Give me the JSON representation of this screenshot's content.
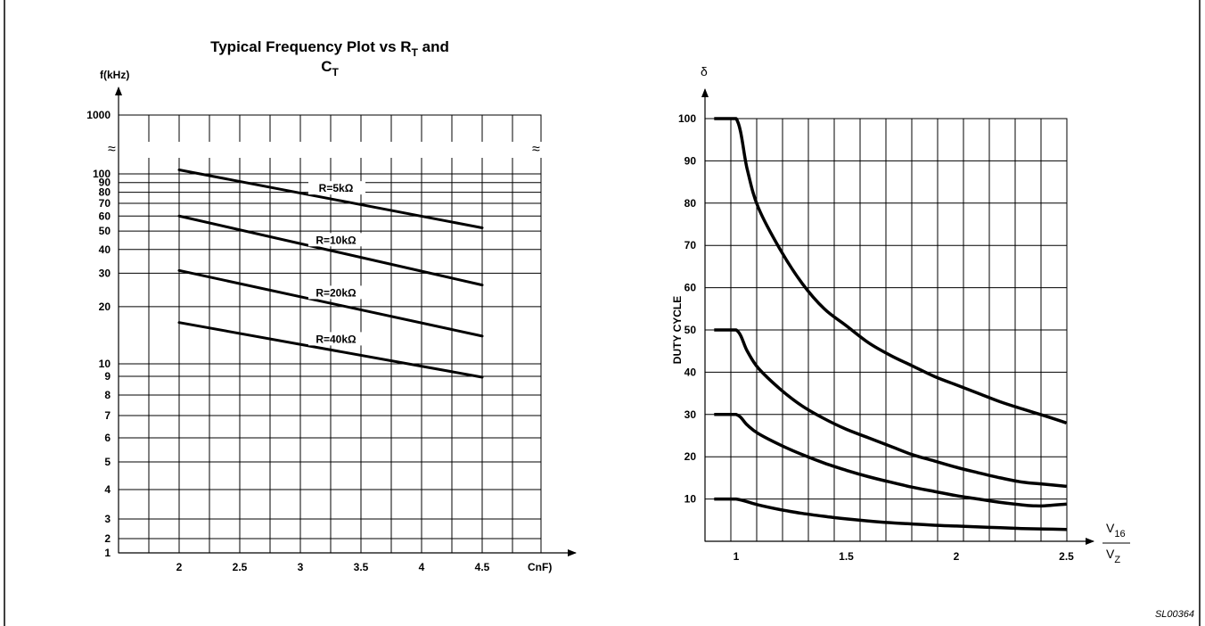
{
  "figure_id": "SL00364",
  "chart_data": [
    {
      "type": "line",
      "title_main": "Typical Frequency Plot vs R",
      "title_sub1": "T",
      "title_mid": " and",
      "title_line2": "C",
      "title_sub2": "T",
      "ylabel": "f(kHz)",
      "xlabel": "CnF)",
      "y_scale": "log (broken)",
      "x_ticks": [
        "2",
        "2.5",
        "3",
        "3.5",
        "4",
        "4.5"
      ],
      "y_ticks": [
        "1000",
        "100",
        "90",
        "80",
        "70",
        "60",
        "50",
        "40",
        "30",
        "20",
        "10",
        "9",
        "8",
        "7",
        "6",
        "5",
        "4",
        "3",
        "2",
        "1"
      ],
      "break_symbol": "≈",
      "grid": true,
      "series": [
        {
          "name": "R=5kΩ",
          "x": [
            2,
            4.5
          ],
          "y": [
            105,
            52
          ]
        },
        {
          "name": "R=10kΩ",
          "x": [
            2,
            4.5
          ],
          "y": [
            60,
            26
          ]
        },
        {
          "name": "R=20kΩ",
          "x": [
            2,
            4.5
          ],
          "y": [
            31,
            14
          ]
        },
        {
          "name": "R=40kΩ",
          "x": [
            2,
            4.5
          ],
          "y": [
            16.5,
            8.5
          ]
        }
      ]
    },
    {
      "type": "line",
      "ylabel": "DUTY CYCLE",
      "ysymbol": "δ",
      "xlabel_num": "V",
      "xlabel_num_sub": "16",
      "xlabel_den": "V",
      "xlabel_den_sub": "Z",
      "x_ticks": [
        "1",
        "1.5",
        "2",
        "2.5"
      ],
      "y_ticks": [
        "100",
        "90",
        "80",
        "70",
        "60",
        "50",
        "40",
        "30",
        "20",
        "10"
      ],
      "xlim": [
        0.9,
        2.5
      ],
      "ylim": [
        0,
        100
      ],
      "grid": true,
      "series": [
        {
          "x": [
            0.9,
            1.0,
            1.05,
            1.1,
            1.2,
            1.3,
            1.4,
            1.5,
            1.6,
            1.7,
            1.8,
            1.9,
            2.0,
            2.1,
            2.2,
            2.3,
            2.4,
            2.5
          ],
          "y": [
            100,
            100,
            88,
            79,
            69,
            61,
            55,
            51,
            47,
            44,
            41.5,
            39,
            37,
            35,
            33,
            31.3,
            29.7,
            28
          ]
        },
        {
          "x": [
            0.9,
            1.0,
            1.05,
            1.1,
            1.2,
            1.3,
            1.4,
            1.5,
            1.6,
            1.7,
            1.8,
            1.9,
            2.0,
            2.1,
            2.2,
            2.3,
            2.4,
            2.5
          ],
          "y": [
            50,
            50,
            45,
            41,
            36,
            32,
            29,
            26.5,
            24.5,
            22.5,
            20.5,
            19,
            17.5,
            16.2,
            15,
            14,
            13.5,
            13
          ]
        },
        {
          "x": [
            0.9,
            1.0,
            1.05,
            1.1,
            1.2,
            1.3,
            1.4,
            1.5,
            1.6,
            1.7,
            1.8,
            1.9,
            2.0,
            2.1,
            2.2,
            2.3,
            2.35,
            2.4,
            2.5
          ],
          "y": [
            30,
            30,
            27.5,
            25.5,
            22.8,
            20.5,
            18.5,
            16.8,
            15.3,
            14,
            12.8,
            11.8,
            10.8,
            10,
            9.2,
            8.6,
            8.4,
            8.4,
            8.8
          ]
        },
        {
          "x": [
            0.9,
            1.0,
            1.1,
            1.2,
            1.3,
            1.4,
            1.5,
            1.6,
            1.7,
            1.8,
            1.9,
            2.0,
            2.1,
            2.2,
            2.3,
            2.4,
            2.5
          ],
          "y": [
            10,
            10,
            8.6,
            7.5,
            6.6,
            5.9,
            5.3,
            4.8,
            4.4,
            4.1,
            3.8,
            3.6,
            3.4,
            3.2,
            3.0,
            2.9,
            2.8
          ]
        }
      ]
    }
  ]
}
